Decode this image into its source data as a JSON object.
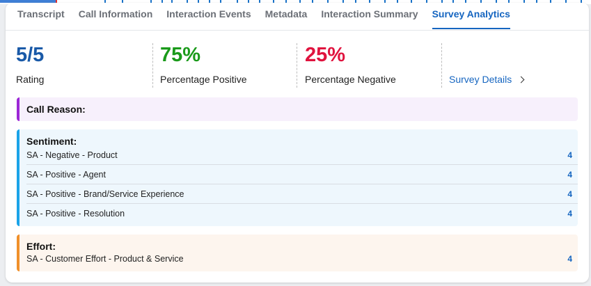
{
  "tabs": [
    {
      "label": "Transcript"
    },
    {
      "label": "Call Information"
    },
    {
      "label": "Interaction Events"
    },
    {
      "label": "Metadata"
    },
    {
      "label": "Interaction Summary"
    },
    {
      "label": "Survey Analytics"
    }
  ],
  "active_tab": "Survey Analytics",
  "stats": {
    "rating": {
      "value": "5/5",
      "label": "Rating",
      "color": "#1a5aa8"
    },
    "positive": {
      "value": "75%",
      "label": "Percentage Positive",
      "color": "#1a9a1a"
    },
    "negative": {
      "value": "25%",
      "label": "Percentage Negative",
      "color": "#e0133e"
    }
  },
  "survey_details_label": "Survey Details",
  "sections": {
    "call_reason": {
      "title": "Call Reason:",
      "accent": "#9c27d6",
      "bg": "#f7f0fc"
    },
    "sentiment": {
      "title": "Sentiment:",
      "accent": "#1aa3e8",
      "bg": "#eef7fd",
      "rows": [
        {
          "label": "SA - Negative - Product",
          "count": "4"
        },
        {
          "label": "SA - Positive - Agent",
          "count": "4"
        },
        {
          "label": "SA - Positive - Brand/Service Experience",
          "count": "4"
        },
        {
          "label": "SA - Positive - Resolution",
          "count": "4"
        }
      ]
    },
    "effort": {
      "title": "Effort:",
      "accent": "#f0902a",
      "bg": "#fdf5ee",
      "rows": [
        {
          "label": "SA - Customer Effort - Product & Service",
          "count": "4"
        }
      ]
    }
  }
}
